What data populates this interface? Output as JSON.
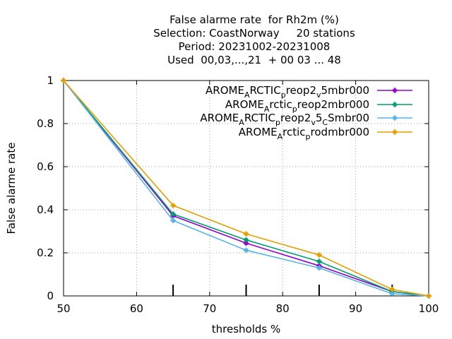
{
  "chart_data": {
    "type": "line",
    "title_lines": [
      "False alarme rate  for Rh2m (%)",
      "Selection: CoastNorway     20 stations",
      "Period: 20231002-20231008",
      "Used  00,03,...,21  + 00 03 ... 48"
    ],
    "xlabel": "thresholds %",
    "ylabel": "False alarme rate",
    "xlim": [
      50,
      100
    ],
    "ylim": [
      0,
      1
    ],
    "xticks": [
      50,
      60,
      70,
      80,
      90,
      100
    ],
    "yticks": [
      0,
      0.2,
      0.4,
      0.6,
      0.8,
      1
    ],
    "ytick_labels": [
      "0",
      "0.2",
      "0.4",
      "0.6",
      "0.8",
      "1"
    ],
    "grid": true,
    "legend_position": "top-right",
    "marker_x": [
      65,
      75,
      85,
      95
    ],
    "series": [
      {
        "name": "AROME_ARCTIC_preop2_v5mbr000",
        "legend_parts": [
          [
            "AROME",
            ""
          ],
          [
            "A",
            "sub"
          ],
          [
            "RCTIC",
            ""
          ],
          [
            "p",
            "sub"
          ],
          [
            "reop2",
            ""
          ],
          [
            "v",
            "sub"
          ],
          [
            "5mbr000",
            ""
          ]
        ],
        "color": "#9400d3",
        "x": [
          50,
          65,
          75,
          85,
          95,
          100
        ],
        "y": [
          1.0,
          0.372,
          0.245,
          0.14,
          0.02,
          0.0
        ]
      },
      {
        "name": "AROME_Arctic_preop2mbr000",
        "legend_parts": [
          [
            "AROME",
            ""
          ],
          [
            "A",
            "sub"
          ],
          [
            "rctic",
            ""
          ],
          [
            "p",
            "sub"
          ],
          [
            "reop2mbr000",
            ""
          ]
        ],
        "color": "#009e73",
        "x": [
          50,
          65,
          75,
          85,
          95,
          100
        ],
        "y": [
          1.0,
          0.38,
          0.26,
          0.16,
          0.02,
          0.0
        ]
      },
      {
        "name": "AROME_ARCTIC_preop2_v5_CSmbr00",
        "legend_parts": [
          [
            "AROME",
            ""
          ],
          [
            "A",
            "sub"
          ],
          [
            "RCTIC",
            ""
          ],
          [
            "p",
            "sub"
          ],
          [
            "reop2",
            ""
          ],
          [
            "v",
            "sub"
          ],
          [
            "5",
            ""
          ],
          [
            "C",
            "sub"
          ],
          [
            "Smbr00",
            ""
          ]
        ],
        "color": "#56b4e9",
        "x": [
          50,
          65,
          75,
          85,
          95,
          100
        ],
        "y": [
          1.0,
          0.35,
          0.212,
          0.13,
          0.01,
          0.0
        ]
      },
      {
        "name": "AROME_Arctic_prodmbr000",
        "legend_parts": [
          [
            "AROME",
            ""
          ],
          [
            "A",
            "sub"
          ],
          [
            "rctic",
            ""
          ],
          [
            "p",
            "sub"
          ],
          [
            "rodmbr000",
            ""
          ]
        ],
        "color": "#e69f00",
        "x": [
          50,
          65,
          75,
          85,
          95,
          100
        ],
        "y": [
          1.0,
          0.42,
          0.288,
          0.19,
          0.03,
          0.0
        ]
      }
    ]
  }
}
